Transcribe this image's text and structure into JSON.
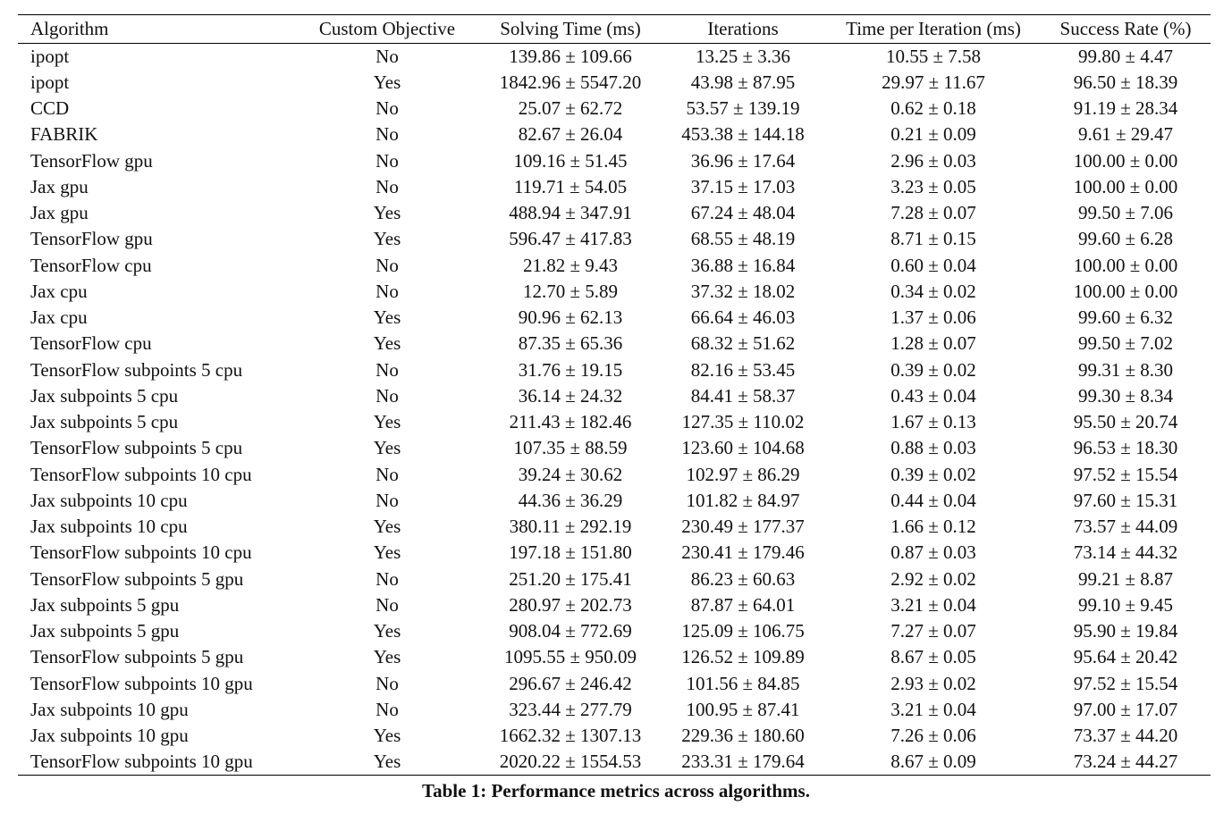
{
  "table": {
    "headers": [
      "Algorithm",
      "Custom Objective",
      "Solving Time (ms)",
      "Iterations",
      "Time per Iteration (ms)",
      "Success Rate (%)"
    ],
    "rows": [
      [
        "ipopt",
        "No",
        "139.86 ± 109.66",
        "13.25 ± 3.36",
        "10.55 ± 7.58",
        "99.80 ± 4.47"
      ],
      [
        "ipopt",
        "Yes",
        "1842.96 ± 5547.20",
        "43.98 ± 87.95",
        "29.97 ± 11.67",
        "96.50 ± 18.39"
      ],
      [
        "CCD",
        "No",
        "25.07 ± 62.72",
        "53.57 ± 139.19",
        "0.62 ± 0.18",
        "91.19 ± 28.34"
      ],
      [
        "FABRIK",
        "No",
        "82.67 ± 26.04",
        "453.38 ± 144.18",
        "0.21 ± 0.09",
        "9.61 ± 29.47"
      ],
      [
        "TensorFlow gpu",
        "No",
        "109.16 ± 51.45",
        "36.96 ± 17.64",
        "2.96 ± 0.03",
        "100.00 ± 0.00"
      ],
      [
        "Jax gpu",
        "No",
        "119.71 ± 54.05",
        "37.15 ± 17.03",
        "3.23 ± 0.05",
        "100.00 ± 0.00"
      ],
      [
        "Jax gpu",
        "Yes",
        "488.94 ± 347.91",
        "67.24 ± 48.04",
        "7.28 ± 0.07",
        "99.50 ± 7.06"
      ],
      [
        "TensorFlow gpu",
        "Yes",
        "596.47 ± 417.83",
        "68.55 ± 48.19",
        "8.71 ± 0.15",
        "99.60 ± 6.28"
      ],
      [
        "TensorFlow cpu",
        "No",
        "21.82 ± 9.43",
        "36.88 ± 16.84",
        "0.60 ± 0.04",
        "100.00 ± 0.00"
      ],
      [
        "Jax cpu",
        "No",
        "12.70 ± 5.89",
        "37.32 ± 18.02",
        "0.34 ± 0.02",
        "100.00 ± 0.00"
      ],
      [
        "Jax cpu",
        "Yes",
        "90.96 ± 62.13",
        "66.64 ± 46.03",
        "1.37 ± 0.06",
        "99.60 ± 6.32"
      ],
      [
        "TensorFlow cpu",
        "Yes",
        "87.35 ± 65.36",
        "68.32 ± 51.62",
        "1.28 ± 0.07",
        "99.50 ± 7.02"
      ],
      [
        "TensorFlow subpoints 5 cpu",
        "No",
        "31.76 ± 19.15",
        "82.16 ± 53.45",
        "0.39 ± 0.02",
        "99.31 ± 8.30"
      ],
      [
        "Jax subpoints 5 cpu",
        "No",
        "36.14 ± 24.32",
        "84.41 ± 58.37",
        "0.43 ± 0.04",
        "99.30 ± 8.34"
      ],
      [
        "Jax subpoints 5 cpu",
        "Yes",
        "211.43 ± 182.46",
        "127.35 ± 110.02",
        "1.67 ± 0.13",
        "95.50 ± 20.74"
      ],
      [
        "TensorFlow subpoints 5 cpu",
        "Yes",
        "107.35 ± 88.59",
        "123.60 ± 104.68",
        "0.88 ± 0.03",
        "96.53 ± 18.30"
      ],
      [
        "TensorFlow subpoints 10 cpu",
        "No",
        "39.24 ± 30.62",
        "102.97 ± 86.29",
        "0.39 ± 0.02",
        "97.52 ± 15.54"
      ],
      [
        "Jax subpoints 10 cpu",
        "No",
        "44.36 ± 36.29",
        "101.82 ± 84.97",
        "0.44 ± 0.04",
        "97.60 ± 15.31"
      ],
      [
        "Jax subpoints 10 cpu",
        "Yes",
        "380.11 ± 292.19",
        "230.49 ± 177.37",
        "1.66 ± 0.12",
        "73.57 ± 44.09"
      ],
      [
        "TensorFlow subpoints 10 cpu",
        "Yes",
        "197.18 ± 151.80",
        "230.41 ± 179.46",
        "0.87 ± 0.03",
        "73.14 ± 44.32"
      ],
      [
        "TensorFlow subpoints 5 gpu",
        "No",
        "251.20 ± 175.41",
        "86.23 ± 60.63",
        "2.92 ± 0.02",
        "99.21 ± 8.87"
      ],
      [
        "Jax subpoints 5 gpu",
        "No",
        "280.97 ± 202.73",
        "87.87 ± 64.01",
        "3.21 ± 0.04",
        "99.10 ± 9.45"
      ],
      [
        "Jax subpoints 5 gpu",
        "Yes",
        "908.04 ± 772.69",
        "125.09 ± 106.75",
        "7.27 ± 0.07",
        "95.90 ± 19.84"
      ],
      [
        "TensorFlow subpoints 5 gpu",
        "Yes",
        "1095.55 ± 950.09",
        "126.52 ± 109.89",
        "8.67 ± 0.05",
        "95.64 ± 20.42"
      ],
      [
        "TensorFlow subpoints 10 gpu",
        "No",
        "296.67 ± 246.42",
        "101.56 ± 84.85",
        "2.93 ± 0.02",
        "97.52 ± 15.54"
      ],
      [
        "Jax subpoints 10 gpu",
        "No",
        "323.44 ± 277.79",
        "100.95 ± 87.41",
        "3.21 ± 0.04",
        "97.00 ± 17.07"
      ],
      [
        "Jax subpoints 10 gpu",
        "Yes",
        "1662.32 ± 1307.13",
        "229.36 ± 180.60",
        "7.26 ± 0.06",
        "73.37 ± 44.20"
      ],
      [
        "TensorFlow subpoints 10 gpu",
        "Yes",
        "2020.22 ± 1554.53",
        "233.31 ± 179.64",
        "8.67 ± 0.09",
        "73.24 ± 44.27"
      ]
    ],
    "caption": "Table 1: Performance metrics across algorithms."
  }
}
